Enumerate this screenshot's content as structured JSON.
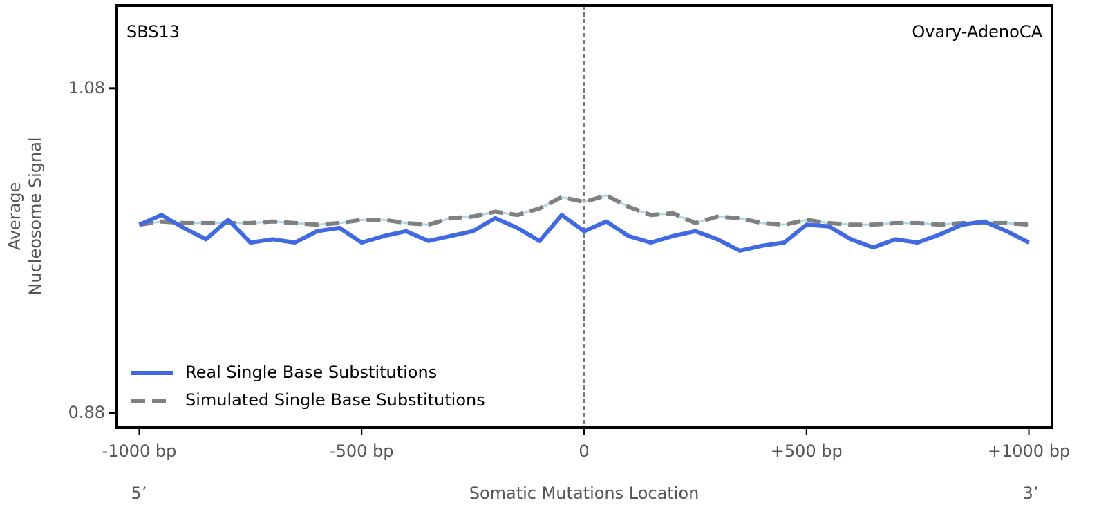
{
  "chart_data": {
    "type": "line",
    "title_left": "SBS13",
    "title_right": "Ovary-AdenoCA",
    "x_label": "Somatic Mutations Location",
    "y_label": [
      "Average",
      "Nucleosome Signal"
    ],
    "x_end_labels": [
      "5’",
      "3’"
    ],
    "x": [
      -1000,
      -950,
      -900,
      -850,
      -800,
      -750,
      -700,
      -650,
      -600,
      -550,
      -500,
      -450,
      -400,
      -350,
      -300,
      -250,
      -200,
      -150,
      -100,
      -50,
      0,
      50,
      100,
      150,
      200,
      250,
      300,
      350,
      400,
      450,
      500,
      550,
      600,
      650,
      700,
      750,
      800,
      850,
      900,
      950,
      1000
    ],
    "series": [
      {
        "name": "Real Single Base Substitutions",
        "color": "#4169e1",
        "linestyle": "solid",
        "values": [
          0.996,
          1.002,
          0.994,
          0.987,
          0.999,
          0.985,
          0.987,
          0.985,
          0.992,
          0.994,
          0.985,
          0.989,
          0.992,
          0.986,
          0.989,
          0.992,
          1.0,
          0.994,
          0.986,
          1.002,
          0.992,
          0.998,
          0.989,
          0.985,
          0.989,
          0.992,
          0.987,
          0.98,
          0.983,
          0.985,
          0.996,
          0.995,
          0.987,
          0.982,
          0.987,
          0.985,
          0.99,
          0.996,
          0.998,
          0.992,
          0.985
        ]
      },
      {
        "name": "Simulated Single Base Substitutions",
        "color": "#808080",
        "underlay_color": "#add8e6",
        "linestyle": "dashed",
        "values": [
          0.996,
          0.998,
          0.997,
          0.997,
          0.997,
          0.997,
          0.998,
          0.997,
          0.996,
          0.997,
          0.999,
          0.999,
          0.997,
          0.996,
          1.0,
          1.001,
          1.004,
          1.002,
          1.006,
          1.013,
          1.01,
          1.014,
          1.007,
          1.002,
          1.003,
          0.997,
          1.001,
          1.0,
          0.997,
          0.996,
          0.999,
          0.997,
          0.996,
          0.996,
          0.997,
          0.997,
          0.996,
          0.997,
          0.997,
          0.997,
          0.996
        ]
      }
    ],
    "xlim": [
      -1052,
      1052
    ],
    "ylim": [
      0.871,
      1.131
    ],
    "xticks": [
      {
        "value": -1000,
        "label": "-1000 bp"
      },
      {
        "value": -500,
        "label": "-500 bp"
      },
      0,
      {
        "value": 500,
        "label": "+500 bp"
      },
      {
        "value": 1000,
        "label": "+1000 bp"
      }
    ],
    "yticks": [
      0.88,
      1.08
    ],
    "vline": 0,
    "grid": false,
    "legend": "lower left"
  }
}
